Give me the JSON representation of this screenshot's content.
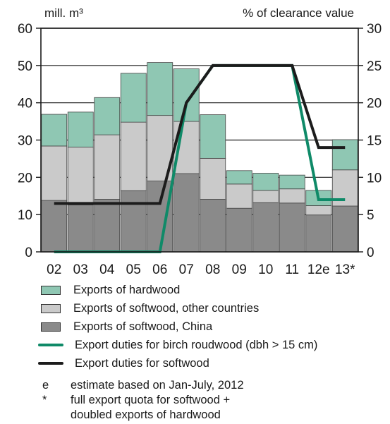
{
  "chart_data": {
    "type": "bar",
    "categories": [
      "02",
      "03",
      "04",
      "05",
      "06",
      "07",
      "08",
      "09",
      "10",
      "11",
      "12e",
      "13*"
    ],
    "left_axis": {
      "label": "mill. m³",
      "ylim": [
        0,
        60
      ],
      "ticks": [
        "0",
        "10",
        "20",
        "30",
        "40",
        "50",
        "60"
      ]
    },
    "right_axis": {
      "label": "% of clearance value",
      "ylim": [
        0,
        30
      ],
      "ticks": [
        "0",
        "5",
        "10",
        "15",
        "20",
        "25",
        "30"
      ]
    },
    "stacked_series": [
      {
        "name": "Exports of softwood, China",
        "color": "#8a8a8a",
        "values": [
          13.8,
          12.6,
          14.1,
          16.4,
          19.0,
          21.0,
          14.1,
          11.7,
          13.2,
          13.1,
          9.9,
          12.3
        ]
      },
      {
        "name": "Exports of softwood, other countries",
        "color": "#cacaca",
        "values": [
          14.6,
          15.5,
          17.3,
          18.4,
          17.6,
          14.0,
          11.0,
          6.5,
          3.3,
          3.8,
          2.5,
          9.7
        ]
      },
      {
        "name": "Exports of hardwood",
        "color": "#8fc7b3",
        "values": [
          8.5,
          9.4,
          10.0,
          13.1,
          14.2,
          14.1,
          11.7,
          3.6,
          4.6,
          3.7,
          4.1,
          8.1
        ]
      }
    ],
    "line_series": [
      {
        "name": "Export duties for birch roudwood (dbh > 15 cm)",
        "color": "#0f8a68",
        "axis": "right",
        "values": [
          0,
          0,
          0,
          0,
          0,
          20,
          25,
          25,
          25,
          25,
          7,
          7
        ]
      },
      {
        "name": "Export duties for softwood",
        "color": "#1c1c1c",
        "axis": "right",
        "values": [
          6.5,
          6.5,
          6.5,
          6.5,
          6.5,
          20,
          25,
          25,
          25,
          25,
          14,
          14
        ]
      }
    ]
  },
  "legend": {
    "items": [
      "Exports of hardwood",
      "Exports of softwood, other countries",
      "Exports of softwood, China",
      "Export duties for birch roudwood (dbh > 15 cm)",
      "Export duties for softwood"
    ]
  },
  "notes": [
    {
      "symbol": "e",
      "text": "estimate based on Jan-July, 2012"
    },
    {
      "symbol": "*",
      "text": "full export quota for softwood +"
    },
    {
      "symbol": "",
      "text": "doubled exports of hardwood"
    }
  ]
}
